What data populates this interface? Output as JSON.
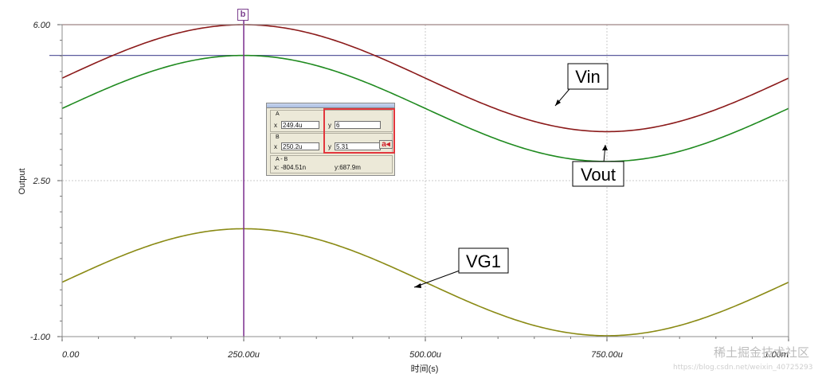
{
  "chart_data": {
    "type": "line",
    "title": "",
    "xlabel": "时间(s)",
    "ylabel": "Output",
    "x_ticks": [
      "0.00",
      "250.00u",
      "500.00u",
      "750.00u",
      "1.00m"
    ],
    "y_ticks": [
      "6.00",
      "2.50",
      "-1.00"
    ],
    "xlim": [
      0,
      0.001
    ],
    "ylim": [
      -1,
      6
    ],
    "grid": true,
    "series": [
      {
        "name": "Vin",
        "color": "#8b1a1a",
        "offset": 4.8,
        "amplitude": 1.2,
        "frequency_hz": 1000,
        "phase_deg": 0
      },
      {
        "name": "Vout",
        "color": "#1f8a1f",
        "offset": 4.12,
        "amplitude": 1.19,
        "frequency_hz": 1000,
        "phase_deg": 0
      },
      {
        "name": "VG1",
        "color": "#8a8a14",
        "offset": 0.22,
        "amplitude": 1.2,
        "frequency_hz": 1000,
        "phase_deg": 0
      }
    ],
    "reference_lines": [
      {
        "y": 6.0,
        "color": "#e06060"
      },
      {
        "y": 5.31,
        "color": "#5a5a9e"
      }
    ],
    "cursor": {
      "x": 0.00025,
      "color": "#7b2d8e",
      "label": "b"
    }
  },
  "cursor_panel": {
    "a": {
      "group_label": "A",
      "x_label": "x",
      "x_value": "249.4u",
      "y_label": "y",
      "y_value": "6"
    },
    "b": {
      "group_label": "B",
      "x_label": "x",
      "x_value": "250.2u",
      "y_label": "y",
      "y_value": "5.31",
      "button": "a"
    },
    "diff": {
      "group_label": "A - B",
      "x_text": "x: -804.51n",
      "y_text": "y:687.9m"
    }
  },
  "callouts": {
    "vin": "Vin",
    "vout": "Vout",
    "vg1": "VG1"
  },
  "watermark": {
    "text": "稀土掘金技术社区",
    "url": "https://blog.csdn.net/weixin_40725293"
  }
}
